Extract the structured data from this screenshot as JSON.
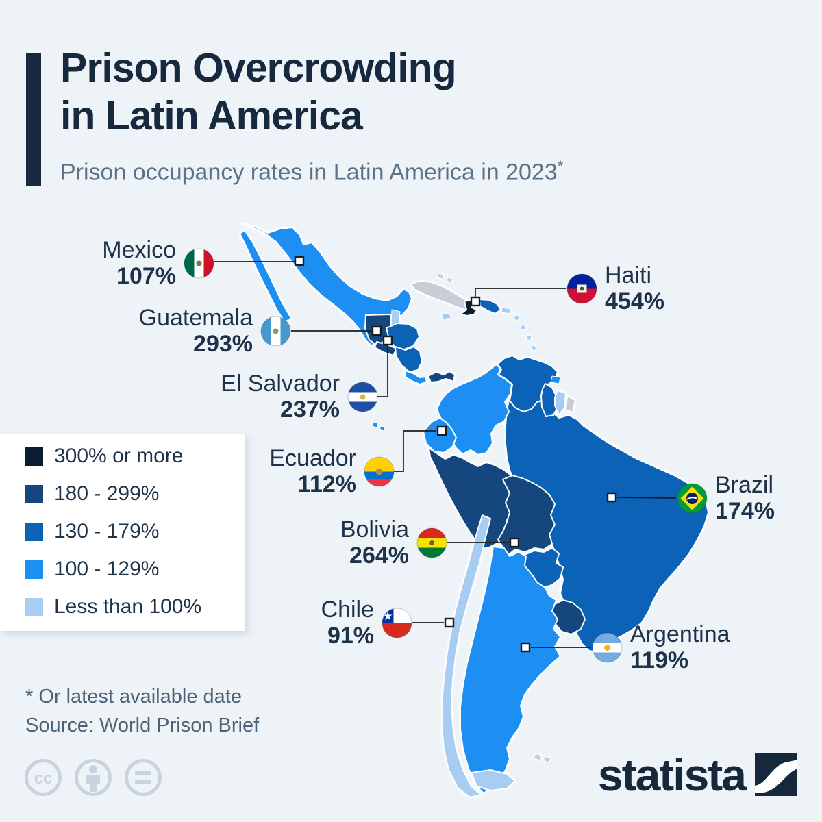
{
  "header": {
    "title_line1": "Prison Overcrowding",
    "title_line2": "in Latin America",
    "subtitle": "Prison occupancy rates in Latin America in 2023",
    "subtitle_mark": "*"
  },
  "legend": {
    "items": [
      {
        "label": "300% or more",
        "color": "#0a1c30"
      },
      {
        "label": "180 - 299%",
        "color": "#15477e"
      },
      {
        "label": "130 - 179%",
        "color": "#0b62b6"
      },
      {
        "label": "100 - 129%",
        "color": "#1e8ff2"
      },
      {
        "label": "Less than 100%",
        "color": "#a8cdf3"
      }
    ]
  },
  "map": {
    "border_color": "#ffffff",
    "no_data_color": "#c8ced5",
    "countries": {
      "mexico": {
        "name": "Mexico",
        "category": "100 - 129%",
        "color": "#1e8ff2"
      },
      "belize": {
        "name": "Belize",
        "category": "Less than 100%",
        "color": "#a8cdf3"
      },
      "guatemala": {
        "name": "Guatemala",
        "category": "180 - 299%",
        "color": "#15477e"
      },
      "honduras": {
        "name": "Honduras",
        "category": "130 - 179%",
        "color": "#0b62b6"
      },
      "el_salvador": {
        "name": "El Salvador",
        "category": "180 - 299%",
        "color": "#15477e"
      },
      "nicaragua": {
        "name": "Nicaragua",
        "category": "130 - 179%",
        "color": "#0b62b6"
      },
      "costa_rica": {
        "name": "Costa Rica",
        "category": "100 - 129%",
        "color": "#1e8ff2"
      },
      "panama": {
        "name": "Panama",
        "category": "180 - 299%",
        "color": "#15477e"
      },
      "cuba": {
        "name": "Cuba",
        "category": "No data",
        "color": "#c8ced5"
      },
      "bahamas": {
        "name": "Bahamas",
        "category": "No data",
        "color": "#c8ced5"
      },
      "jamaica": {
        "name": "Jamaica",
        "category": "Less than 100%",
        "color": "#a8cdf3"
      },
      "haiti": {
        "name": "Haiti",
        "category": "300% or more",
        "color": "#0a1c30"
      },
      "dominican_republic": {
        "name": "Dominican Republic",
        "category": "130 - 179%",
        "color": "#0b62b6"
      },
      "puerto_rico": {
        "name": "Puerto Rico",
        "category": "Less than 100%",
        "color": "#a8cdf3"
      },
      "lesser_antilles": {
        "name": "Lesser Antilles",
        "category": "Less than 100%",
        "color": "#a8cdf3"
      },
      "trinidad_tobago": {
        "name": "Trinidad and Tobago",
        "category": "100 - 129%",
        "color": "#1e8ff2"
      },
      "colombia": {
        "name": "Colombia",
        "category": "100 - 129%",
        "color": "#1e8ff2"
      },
      "venezuela": {
        "name": "Venezuela",
        "category": "130 - 179%",
        "color": "#0b62b6"
      },
      "guyana": {
        "name": "Guyana",
        "category": "130 - 179%",
        "color": "#0b62b6"
      },
      "suriname": {
        "name": "Suriname",
        "category": "Less than 100%",
        "color": "#a8cdf3"
      },
      "french_guiana": {
        "name": "French Guiana",
        "category": "No data",
        "color": "#c8ced5"
      },
      "ecuador": {
        "name": "Ecuador",
        "category": "100 - 129%",
        "color": "#1e8ff2"
      },
      "peru": {
        "name": "Peru",
        "category": "180 - 299%",
        "color": "#15477e"
      },
      "brazil": {
        "name": "Brazil",
        "category": "130 - 179%",
        "color": "#0b62b6"
      },
      "bolivia": {
        "name": "Bolivia",
        "category": "180 - 299%",
        "color": "#15477e"
      },
      "paraguay": {
        "name": "Paraguay",
        "category": "130 - 179%",
        "color": "#0b62b6"
      },
      "uruguay": {
        "name": "Uruguay",
        "category": "180 - 299%",
        "color": "#15477e"
      },
      "argentina": {
        "name": "Argentina",
        "category": "100 - 129%",
        "color": "#1e8ff2"
      },
      "chile": {
        "name": "Chile",
        "category": "Less than 100%",
        "color": "#a8cdf3"
      },
      "galapagos": {
        "name": "Galapagos Islands",
        "category": "100 - 129%",
        "color": "#1e8ff2"
      },
      "falkland_islands": {
        "name": "Falkland Islands",
        "category": "No data",
        "color": "#c8ced5"
      }
    }
  },
  "callouts": [
    {
      "id": "mexico",
      "name": "Mexico",
      "value": "107%",
      "flag": "mexico-flag"
    },
    {
      "id": "haiti",
      "name": "Haiti",
      "value": "454%",
      "flag": "haiti-flag"
    },
    {
      "id": "guatemala",
      "name": "Guatemala",
      "value": "293%",
      "flag": "guatemala-flag"
    },
    {
      "id": "el_salvador",
      "name": "El Salvador",
      "value": "237%",
      "flag": "el-salvador-flag"
    },
    {
      "id": "ecuador",
      "name": "Ecuador",
      "value": "112%",
      "flag": "ecuador-flag"
    },
    {
      "id": "bolivia",
      "name": "Bolivia",
      "value": "264%",
      "flag": "bolivia-flag"
    },
    {
      "id": "brazil",
      "name": "Brazil",
      "value": "174%",
      "flag": "brazil-flag"
    },
    {
      "id": "chile",
      "name": "Chile",
      "value": "91%",
      "flag": "chile-flag"
    },
    {
      "id": "argentina",
      "name": "Argentina",
      "value": "119%",
      "flag": "argentina-flag"
    }
  ],
  "footer": {
    "footnote": "* Or latest available date",
    "source": "Source: World Prison Brief",
    "brand": "statista"
  }
}
